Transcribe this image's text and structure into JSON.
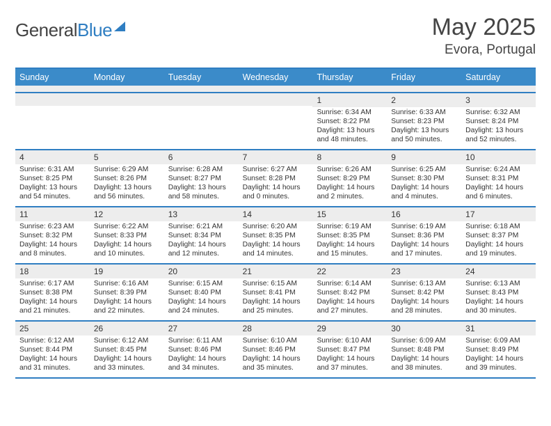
{
  "logo": {
    "word1": "General",
    "word2": "Blue"
  },
  "title": {
    "month": "May 2025",
    "location": "Evora, Portugal"
  },
  "colors": {
    "accent": "#2f7ec2",
    "header_bg": "#3b8bc9",
    "daynum_bg": "#ededed",
    "text": "#444444"
  },
  "dow": [
    "Sunday",
    "Monday",
    "Tuesday",
    "Wednesday",
    "Thursday",
    "Friday",
    "Saturday"
  ],
  "weeks": [
    [
      {
        "n": "",
        "sr": "",
        "ss": "",
        "dl": ""
      },
      {
        "n": "",
        "sr": "",
        "ss": "",
        "dl": ""
      },
      {
        "n": "",
        "sr": "",
        "ss": "",
        "dl": ""
      },
      {
        "n": "",
        "sr": "",
        "ss": "",
        "dl": ""
      },
      {
        "n": "1",
        "sr": "Sunrise: 6:34 AM",
        "ss": "Sunset: 8:22 PM",
        "dl": "Daylight: 13 hours and 48 minutes."
      },
      {
        "n": "2",
        "sr": "Sunrise: 6:33 AM",
        "ss": "Sunset: 8:23 PM",
        "dl": "Daylight: 13 hours and 50 minutes."
      },
      {
        "n": "3",
        "sr": "Sunrise: 6:32 AM",
        "ss": "Sunset: 8:24 PM",
        "dl": "Daylight: 13 hours and 52 minutes."
      }
    ],
    [
      {
        "n": "4",
        "sr": "Sunrise: 6:31 AM",
        "ss": "Sunset: 8:25 PM",
        "dl": "Daylight: 13 hours and 54 minutes."
      },
      {
        "n": "5",
        "sr": "Sunrise: 6:29 AM",
        "ss": "Sunset: 8:26 PM",
        "dl": "Daylight: 13 hours and 56 minutes."
      },
      {
        "n": "6",
        "sr": "Sunrise: 6:28 AM",
        "ss": "Sunset: 8:27 PM",
        "dl": "Daylight: 13 hours and 58 minutes."
      },
      {
        "n": "7",
        "sr": "Sunrise: 6:27 AM",
        "ss": "Sunset: 8:28 PM",
        "dl": "Daylight: 14 hours and 0 minutes."
      },
      {
        "n": "8",
        "sr": "Sunrise: 6:26 AM",
        "ss": "Sunset: 8:29 PM",
        "dl": "Daylight: 14 hours and 2 minutes."
      },
      {
        "n": "9",
        "sr": "Sunrise: 6:25 AM",
        "ss": "Sunset: 8:30 PM",
        "dl": "Daylight: 14 hours and 4 minutes."
      },
      {
        "n": "10",
        "sr": "Sunrise: 6:24 AM",
        "ss": "Sunset: 8:31 PM",
        "dl": "Daylight: 14 hours and 6 minutes."
      }
    ],
    [
      {
        "n": "11",
        "sr": "Sunrise: 6:23 AM",
        "ss": "Sunset: 8:32 PM",
        "dl": "Daylight: 14 hours and 8 minutes."
      },
      {
        "n": "12",
        "sr": "Sunrise: 6:22 AM",
        "ss": "Sunset: 8:33 PM",
        "dl": "Daylight: 14 hours and 10 minutes."
      },
      {
        "n": "13",
        "sr": "Sunrise: 6:21 AM",
        "ss": "Sunset: 8:34 PM",
        "dl": "Daylight: 14 hours and 12 minutes."
      },
      {
        "n": "14",
        "sr": "Sunrise: 6:20 AM",
        "ss": "Sunset: 8:35 PM",
        "dl": "Daylight: 14 hours and 14 minutes."
      },
      {
        "n": "15",
        "sr": "Sunrise: 6:19 AM",
        "ss": "Sunset: 8:35 PM",
        "dl": "Daylight: 14 hours and 15 minutes."
      },
      {
        "n": "16",
        "sr": "Sunrise: 6:19 AM",
        "ss": "Sunset: 8:36 PM",
        "dl": "Daylight: 14 hours and 17 minutes."
      },
      {
        "n": "17",
        "sr": "Sunrise: 6:18 AM",
        "ss": "Sunset: 8:37 PM",
        "dl": "Daylight: 14 hours and 19 minutes."
      }
    ],
    [
      {
        "n": "18",
        "sr": "Sunrise: 6:17 AM",
        "ss": "Sunset: 8:38 PM",
        "dl": "Daylight: 14 hours and 21 minutes."
      },
      {
        "n": "19",
        "sr": "Sunrise: 6:16 AM",
        "ss": "Sunset: 8:39 PM",
        "dl": "Daylight: 14 hours and 22 minutes."
      },
      {
        "n": "20",
        "sr": "Sunrise: 6:15 AM",
        "ss": "Sunset: 8:40 PM",
        "dl": "Daylight: 14 hours and 24 minutes."
      },
      {
        "n": "21",
        "sr": "Sunrise: 6:15 AM",
        "ss": "Sunset: 8:41 PM",
        "dl": "Daylight: 14 hours and 25 minutes."
      },
      {
        "n": "22",
        "sr": "Sunrise: 6:14 AM",
        "ss": "Sunset: 8:42 PM",
        "dl": "Daylight: 14 hours and 27 minutes."
      },
      {
        "n": "23",
        "sr": "Sunrise: 6:13 AM",
        "ss": "Sunset: 8:42 PM",
        "dl": "Daylight: 14 hours and 28 minutes."
      },
      {
        "n": "24",
        "sr": "Sunrise: 6:13 AM",
        "ss": "Sunset: 8:43 PM",
        "dl": "Daylight: 14 hours and 30 minutes."
      }
    ],
    [
      {
        "n": "25",
        "sr": "Sunrise: 6:12 AM",
        "ss": "Sunset: 8:44 PM",
        "dl": "Daylight: 14 hours and 31 minutes."
      },
      {
        "n": "26",
        "sr": "Sunrise: 6:12 AM",
        "ss": "Sunset: 8:45 PM",
        "dl": "Daylight: 14 hours and 33 minutes."
      },
      {
        "n": "27",
        "sr": "Sunrise: 6:11 AM",
        "ss": "Sunset: 8:46 PM",
        "dl": "Daylight: 14 hours and 34 minutes."
      },
      {
        "n": "28",
        "sr": "Sunrise: 6:10 AM",
        "ss": "Sunset: 8:46 PM",
        "dl": "Daylight: 14 hours and 35 minutes."
      },
      {
        "n": "29",
        "sr": "Sunrise: 6:10 AM",
        "ss": "Sunset: 8:47 PM",
        "dl": "Daylight: 14 hours and 37 minutes."
      },
      {
        "n": "30",
        "sr": "Sunrise: 6:09 AM",
        "ss": "Sunset: 8:48 PM",
        "dl": "Daylight: 14 hours and 38 minutes."
      },
      {
        "n": "31",
        "sr": "Sunrise: 6:09 AM",
        "ss": "Sunset: 8:49 PM",
        "dl": "Daylight: 14 hours and 39 minutes."
      }
    ]
  ]
}
